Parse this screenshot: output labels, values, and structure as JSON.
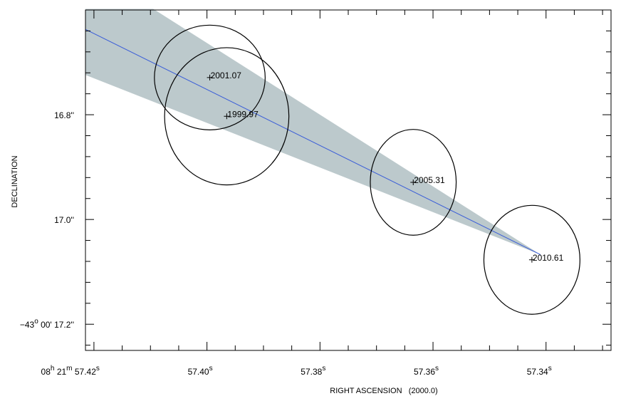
{
  "chart_data": {
    "type": "scatter",
    "xlabel": "RIGHT ASCENSION   (2000.0)",
    "ylabel": "DECLINATION",
    "xlim": [
      57.4215,
      57.3285
    ],
    "ylim": [
      16.6,
      17.25
    ],
    "x_ticks": [
      {
        "value": 57.42,
        "prefix": "08",
        "hour_unit": "h",
        "minute": "21",
        "minute_unit": "m",
        "seconds": "57.42",
        "unit": "s"
      },
      {
        "value": 57.4,
        "prefix": "",
        "hour_unit": "",
        "minute": "",
        "minute_unit": "",
        "seconds": "57.40",
        "unit": "s"
      },
      {
        "value": 57.38,
        "prefix": "",
        "hour_unit": "",
        "minute": "",
        "minute_unit": "",
        "seconds": "57.38",
        "unit": "s"
      },
      {
        "value": 57.36,
        "prefix": "",
        "hour_unit": "",
        "minute": "",
        "minute_unit": "",
        "seconds": "57.36",
        "unit": "s"
      },
      {
        "value": 57.34,
        "prefix": "",
        "hour_unit": "",
        "minute": "",
        "minute_unit": "",
        "seconds": "57.34",
        "unit": "s"
      }
    ],
    "y_ticks": [
      {
        "value": 16.8,
        "label": "16.8''",
        "deg_label": "",
        "deg_unit": "",
        "arcmin_label": ""
      },
      {
        "value": 17.0,
        "label": "17.0''",
        "deg_label": "",
        "deg_unit": "",
        "arcmin_label": ""
      },
      {
        "value": 17.2,
        "label": "17.2''",
        "deg_label": "−43",
        "deg_unit": "o",
        "arcmin_label": "00'"
      }
    ],
    "points": [
      {
        "label": "1999.97",
        "x": 57.3965,
        "y": 16.803,
        "semi_x": 0.011,
        "semi_y": 0.131
      },
      {
        "label": "2001.07",
        "x": 57.3995,
        "y": 16.729,
        "semi_x": 0.0098,
        "semi_y": 0.1
      },
      {
        "label": "2005.31",
        "x": 57.3635,
        "y": 16.929,
        "semi_x": 0.0076,
        "semi_y": 0.101
      },
      {
        "label": "2010.61",
        "x": 57.3425,
        "y": 17.077,
        "semi_x": 0.0085,
        "semi_y": 0.104
      }
    ],
    "fit_line": {
      "from": [
        57.4215,
        16.637
      ],
      "to": [
        57.341,
        17.067
      ]
    },
    "uncertainty_band": [
      [
        57.4215,
        16.598
      ],
      [
        57.4095,
        16.598
      ],
      [
        57.341,
        17.067
      ],
      [
        57.4215,
        16.724
      ]
    ],
    "colors": {
      "fit_line": "#3a5dd8",
      "band": "#bcc9cc",
      "ellipse": "#000000",
      "frame": "#000000"
    }
  }
}
